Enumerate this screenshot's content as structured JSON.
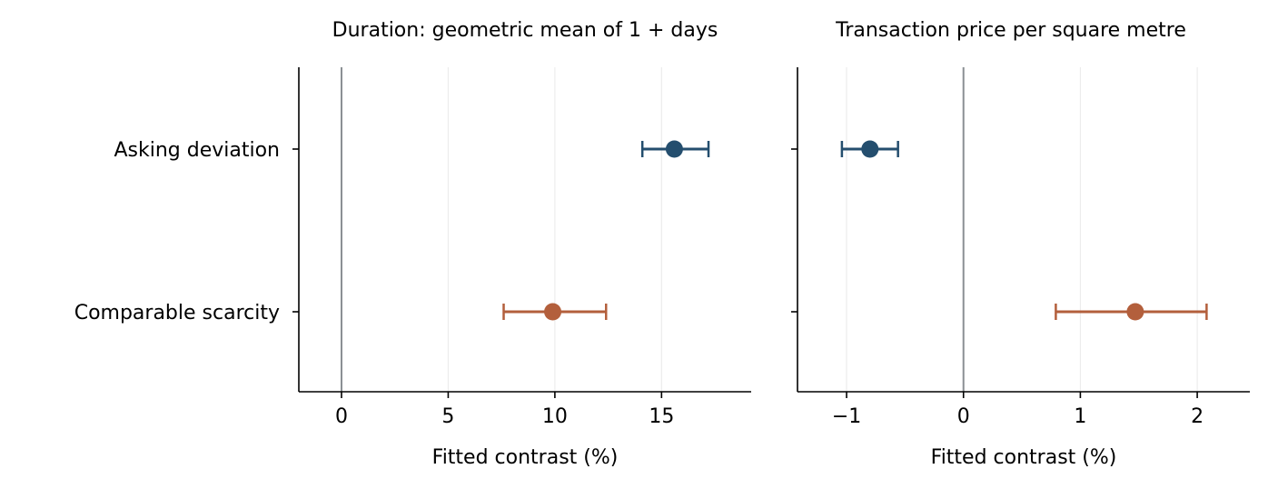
{
  "chart_data": [
    {
      "type": "scatter",
      "style": "point-with-error-bars",
      "title": "Duration: geometric mean of 1 + days",
      "xlabel": "Fitted contrast (%)",
      "ylabel": "",
      "xlim": [
        -2,
        19.2
      ],
      "xticks": [
        0,
        5,
        10,
        15
      ],
      "xtick_labels": [
        "0",
        "5",
        "10",
        "15"
      ],
      "categories": [
        "Asking deviation",
        "Comparable scarcity"
      ],
      "reference_line_x": 0,
      "grid": "vertical",
      "series": [
        {
          "category": "Asking deviation",
          "value": 15.6,
          "ci": [
            14.1,
            17.2
          ],
          "color": "#244e6e"
        },
        {
          "category": "Comparable scarcity",
          "value": 9.9,
          "ci": [
            7.6,
            12.4
          ],
          "color": "#b35f3c"
        }
      ]
    },
    {
      "type": "scatter",
      "style": "point-with-error-bars",
      "title": "Transaction price per square metre",
      "xlabel": "Fitted contrast (%)",
      "ylabel": "",
      "xlim": [
        -1.42,
        2.45
      ],
      "xticks": [
        -1,
        0,
        1,
        2
      ],
      "xtick_labels": [
        "−1",
        "0",
        "1",
        "2"
      ],
      "categories": [
        "Asking deviation",
        "Comparable scarcity"
      ],
      "reference_line_x": 0,
      "grid": "vertical",
      "series": [
        {
          "category": "Asking deviation",
          "value": -0.8,
          "ci": [
            -1.04,
            -0.56
          ],
          "color": "#244e6e"
        },
        {
          "category": "Comparable scarcity",
          "value": 1.47,
          "ci": [
            0.79,
            2.08
          ],
          "color": "#b35f3c"
        }
      ]
    }
  ]
}
